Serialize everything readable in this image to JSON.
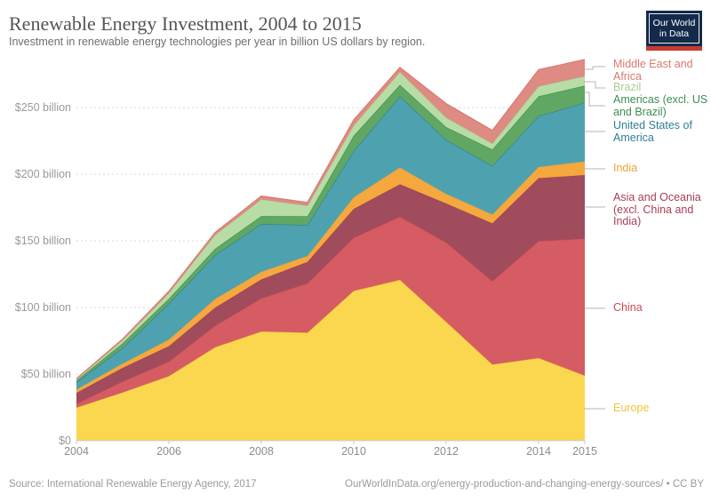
{
  "header": {
    "title": "Renewable Energy Investment, 2004 to 2015",
    "subtitle": "Investment in renewable energy technologies per year in billion US dollars by region.",
    "logo": {
      "line1": "Our World",
      "line2": "in Data",
      "bg": "#132A4B",
      "accent": "#C63A31"
    }
  },
  "footer": {
    "source": "Source: International Renewable Energy Agency, 2017",
    "link": "OurWorldInData.org/energy-production-and-changing-energy-sources/ • CC BY"
  },
  "chart_data": {
    "type": "area",
    "stacked": true,
    "title": "Renewable Energy Investment, 2004 to 2015",
    "xlabel": "",
    "ylabel": "billion US dollars",
    "x": [
      2004,
      2005,
      2006,
      2007,
      2008,
      2009,
      2010,
      2011,
      2012,
      2013,
      2014,
      2015
    ],
    "xlim": [
      2004,
      2015
    ],
    "ylim": [
      0,
      290
    ],
    "grid": "dashed-horizontal",
    "legend_position": "right",
    "y_tick_labels": [
      "$0",
      "$50 billion",
      "$100 billion",
      "$150 billion",
      "$200 billion",
      "$250 billion"
    ],
    "y_tick_values": [
      0,
      50,
      100,
      150,
      200,
      250
    ],
    "x_tick_labels": [
      "2004",
      "2006",
      "2008",
      "2010",
      "2012",
      "2014",
      "2015"
    ],
    "x_tick_values": [
      2004,
      2006,
      2008,
      2010,
      2012,
      2014,
      2015
    ],
    "series": [
      {
        "name": "Europe",
        "legend_label": "Europe",
        "color": "#FAD74F",
        "label_color": "#EFC53F",
        "values": [
          24.8,
          36.2,
          48.4,
          70.1,
          81.9,
          81.1,
          112.4,
          120.7,
          89.2,
          57.2,
          62.0,
          48.8
        ]
      },
      {
        "name": "China",
        "legend_label": "China",
        "color": "#D55C62",
        "label_color": "#CB4A54",
        "values": [
          3.0,
          8.3,
          11.0,
          16.2,
          25.0,
          37.1,
          40.0,
          47.4,
          59.6,
          62.6,
          87.8,
          102.9
        ]
      },
      {
        "name": "Asia and Oceania (excl. China and India)",
        "legend_label": "Asia and Oceania\n(excl. China and\nIndia)",
        "color": "#A04C5D",
        "label_color": "#A63E55",
        "values": [
          8.0,
          10.2,
          11.5,
          13.5,
          14.1,
          16.0,
          21.5,
          24.3,
          29.2,
          43.3,
          47.2,
          47.6
        ]
      },
      {
        "name": "India",
        "legend_label": "India",
        "color": "#F4A83E",
        "label_color": "#F0A13A",
        "values": [
          2.5,
          3.1,
          4.9,
          6.5,
          5.7,
          4.4,
          8.7,
          12.6,
          7.2,
          6.6,
          8.3,
          10.2
        ]
      },
      {
        "name": "United States of America",
        "legend_label": "United States of\nAmerica",
        "color": "#4EA2AF",
        "label_color": "#2E7E93",
        "values": [
          5.5,
          11.8,
          27.1,
          33.0,
          35.9,
          23.3,
          34.7,
          53.4,
          40.5,
          36.4,
          38.3,
          44.1
        ]
      },
      {
        "name": "Americas (excl. US and Brazil)",
        "legend_label": "Americas (excl. US\nand Brazil)",
        "color": "#60A763",
        "label_color": "#3D8E51",
        "values": [
          1.4,
          3.5,
          3.6,
          4.7,
          5.9,
          6.5,
          11.5,
          8.6,
          9.6,
          12.4,
          14.8,
          12.8
        ]
      },
      {
        "name": "Brazil",
        "legend_label": "Brazil",
        "color": "#B8DCA5",
        "label_color": "#A9CE92",
        "values": [
          0.7,
          2.2,
          4.2,
          10.3,
          12.5,
          7.9,
          7.7,
          9.7,
          7.1,
          4.4,
          7.4,
          7.1
        ]
      },
      {
        "name": "Middle East and Africa",
        "legend_label": "Middle East and\nAfrica",
        "color": "#DD8B83",
        "label_color": "#DA7A6F",
        "values": [
          0.7,
          1.0,
          1.4,
          1.9,
          2.6,
          2.5,
          4.3,
          3.3,
          10.5,
          9.9,
          12.6,
          12.5
        ]
      }
    ]
  }
}
